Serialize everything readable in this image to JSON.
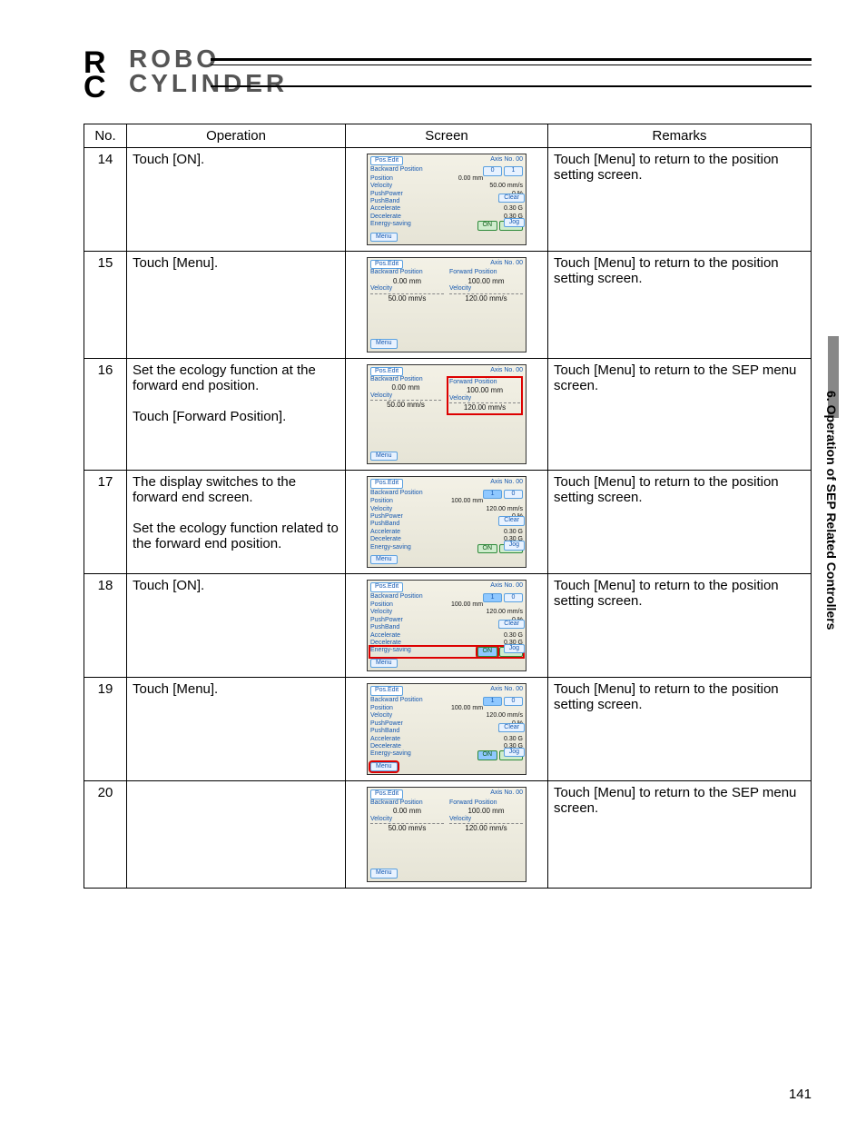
{
  "logo": {
    "line1": "ROBO",
    "line2": "CYLINDER",
    "rc": "R\nC"
  },
  "sideTab": "6. Operation of SEP Related Controllers",
  "pageNumber": "141",
  "headers": {
    "no": "No.",
    "operation": "Operation",
    "screen": "Screen",
    "remarks": "Remarks"
  },
  "rows": [
    {
      "no": "14",
      "op": "Touch [ON].",
      "rem": "Touch [Menu] to return to the position setting screen.",
      "screen": {
        "type": "detail",
        "title": "Pos.Edit",
        "axis": "Axis No. 00",
        "sub": "Backward Position",
        "nums": [
          "0",
          "1"
        ],
        "numsHL": -1,
        "params": [
          [
            "Position",
            "0.00 mm"
          ],
          [
            "Velocity",
            "50.00 mm/s"
          ],
          [
            "PushPower",
            "0 %"
          ],
          [
            "PushBand",
            "0.10 mm"
          ],
          [
            "Accelerate",
            "0.30 G"
          ],
          [
            "Decelerate",
            "0.30 G"
          ],
          [
            "Energy-saving",
            ""
          ]
        ],
        "side": [
          "Clear",
          "Jog"
        ],
        "onoff": [
          "ON",
          "OFF"
        ],
        "onoffHL": -1,
        "menuHL": false
      }
    },
    {
      "no": "15",
      "op": "Touch [Menu].",
      "rem": "Touch [Menu] to return to the position setting screen.",
      "screen": {
        "type": "dual",
        "title": "Pos.Edit",
        "axis": "Axis No. 00",
        "cols": [
          {
            "hdr": "Backward Position",
            "pos": "0.00 mm",
            "lbl": "Velocity",
            "vel": "50.00 mm/s",
            "hl": false
          },
          {
            "hdr": "Forward Position",
            "pos": "100.00 mm",
            "lbl": "Velocity",
            "vel": "120.00 mm/s",
            "hl": false
          }
        ],
        "menuHL": false
      }
    },
    {
      "no": "16",
      "op": "Set the ecology function at the forward end position.\n\nTouch [Forward Position].",
      "rem": "Touch [Menu] to return to the SEP menu screen.",
      "screen": {
        "type": "dual",
        "title": "Pos.Edit",
        "axis": "Axis No. 00",
        "cols": [
          {
            "hdr": "Backward Position",
            "pos": "0.00 mm",
            "lbl": "Velocity",
            "vel": "50.00 mm/s",
            "hl": false
          },
          {
            "hdr": "Forward Position",
            "pos": "100.00 mm",
            "lbl": "Velocity",
            "vel": "120.00 mm/s",
            "hl": true
          }
        ],
        "menuHL": false
      }
    },
    {
      "no": "17",
      "op": "The display switches to the forward end screen.\n\nSet the ecology function related to the forward end position.",
      "rem": "Touch [Menu] to return to the position setting screen.",
      "screen": {
        "type": "detail",
        "title": "Pos.Edit",
        "axis": "Axis No. 00",
        "sub": "Backward Position",
        "nums": [
          "1",
          "0"
        ],
        "numsHL": 0,
        "params": [
          [
            "Position",
            "100.00 mm"
          ],
          [
            "Velocity",
            "120.00 mm/s"
          ],
          [
            "PushPower",
            "0 %"
          ],
          [
            "PushBand",
            "0.10 mm"
          ],
          [
            "Accelerate",
            "0.30 G"
          ],
          [
            "Decelerate",
            "0.30 G"
          ],
          [
            "Energy-saving",
            ""
          ]
        ],
        "side": [
          "Clear",
          "Jog"
        ],
        "onoff": [
          "ON",
          "OFF"
        ],
        "onoffHL": -1,
        "menuHL": false
      }
    },
    {
      "no": "18",
      "op": "Touch [ON].",
      "rem": "Touch [Menu] to return to the position setting screen.",
      "screen": {
        "type": "detail",
        "title": "Pos.Edit",
        "axis": "Axis No. 00",
        "sub": "Backward Position",
        "nums": [
          "1",
          "0"
        ],
        "numsHL": 0,
        "params": [
          [
            "Position",
            "100.00 mm"
          ],
          [
            "Velocity",
            "120.00 mm/s"
          ],
          [
            "PushPower",
            "0 %"
          ],
          [
            "PushBand",
            "0.10 mm"
          ],
          [
            "Accelerate",
            "0.30 G"
          ],
          [
            "Decelerate",
            "0.30 G"
          ],
          [
            "Energy-saving",
            ""
          ]
        ],
        "side": [
          "Clear",
          "Jog"
        ],
        "onoff": [
          "ON",
          "OFF"
        ],
        "onoffHL": 0,
        "rowHL": 6,
        "menuHL": false
      }
    },
    {
      "no": "19",
      "op": "Touch [Menu].",
      "rem": "Touch [Menu] to return to the position setting screen.",
      "screen": {
        "type": "detail",
        "title": "Pos.Edit",
        "axis": "Axis No. 00",
        "sub": "Backward Position",
        "nums": [
          "1",
          "0"
        ],
        "numsHL": 0,
        "params": [
          [
            "Position",
            "100.00 mm"
          ],
          [
            "Velocity",
            "120.00 mm/s"
          ],
          [
            "PushPower",
            "0 %"
          ],
          [
            "PushBand",
            "0.10 mm"
          ],
          [
            "Accelerate",
            "0.30 G"
          ],
          [
            "Decelerate",
            "0.30 G"
          ],
          [
            "Energy-saving",
            ""
          ]
        ],
        "side": [
          "Clear",
          "Jog"
        ],
        "onoff": [
          "ON",
          "OFF"
        ],
        "onoffHL": 0,
        "menuHL": true
      }
    },
    {
      "no": "20",
      "op": "",
      "rem": "Touch [Menu] to return to the SEP menu screen.",
      "screen": {
        "type": "dual",
        "title": "Pos.Edit",
        "axis": "Axis No. 00",
        "cols": [
          {
            "hdr": "Backward Position",
            "pos": "0.00 mm",
            "lbl": "Velocity",
            "vel": "50.00 mm/s",
            "hl": false
          },
          {
            "hdr": "Forward Position",
            "pos": "100.00 mm",
            "lbl": "Velocity",
            "vel": "120.00 mm/s",
            "hl": false
          }
        ],
        "menuHL": false
      }
    }
  ],
  "menuLabel": "Menu"
}
